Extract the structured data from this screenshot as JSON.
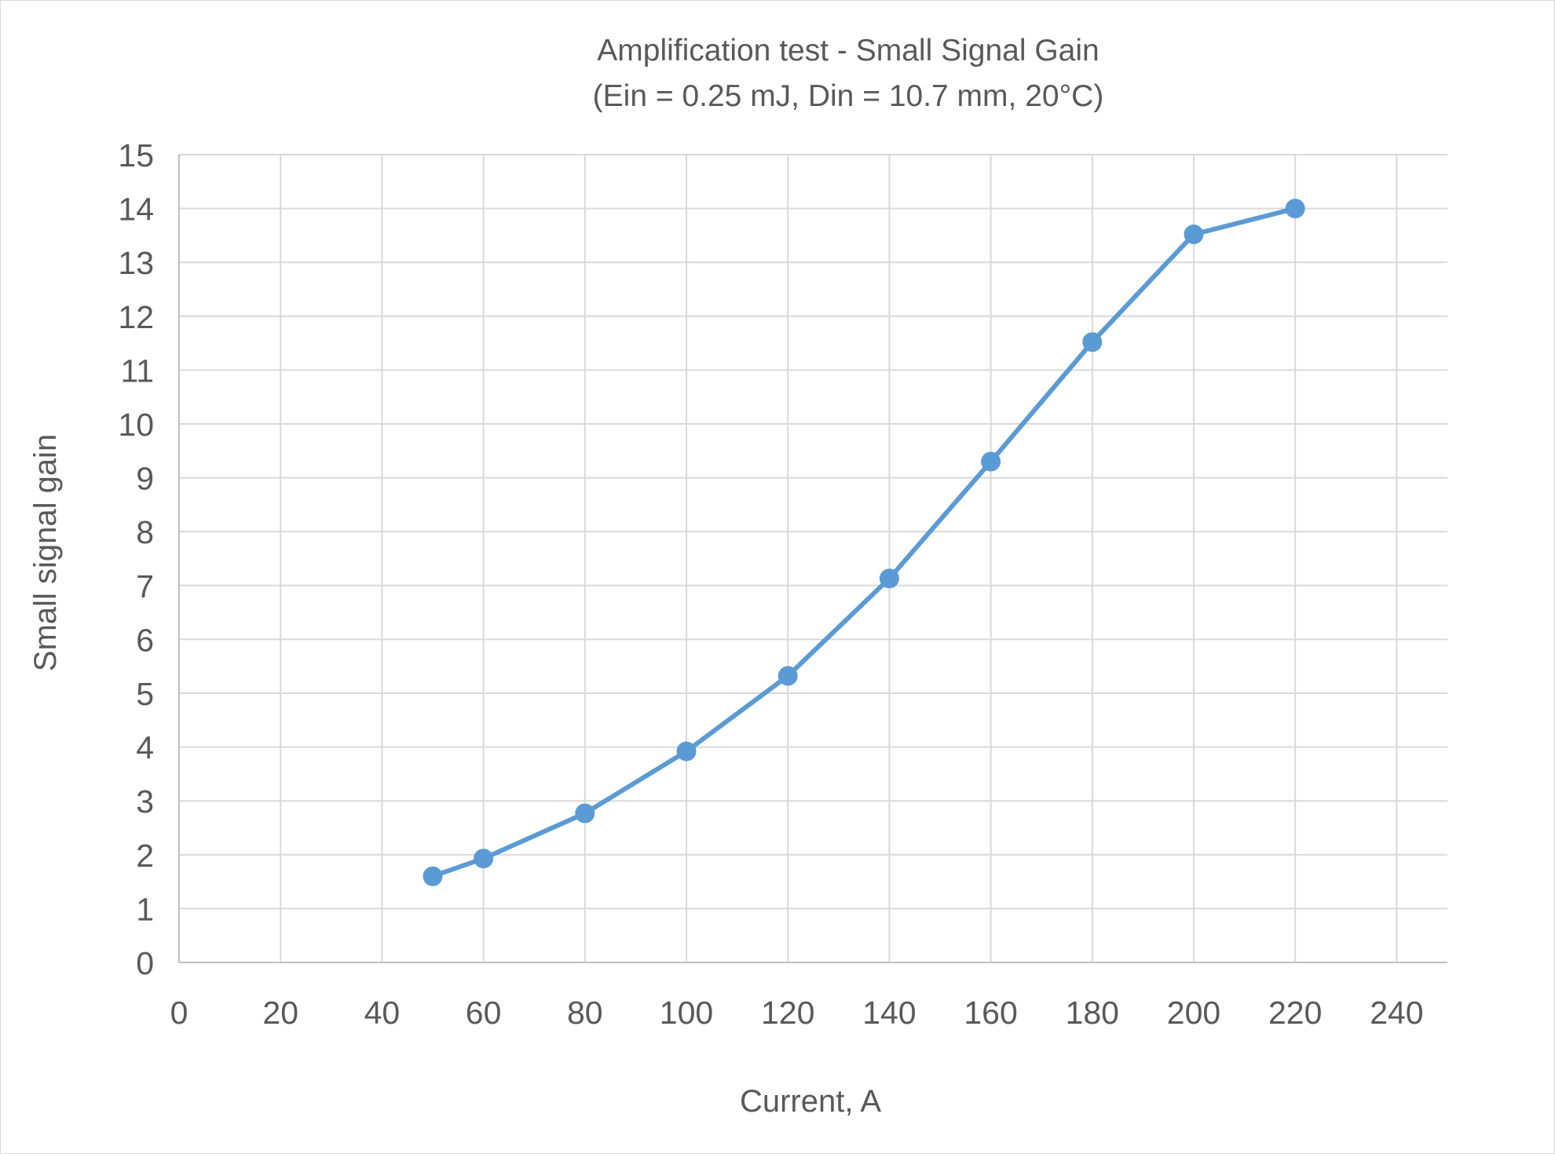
{
  "chart_data": {
    "type": "line",
    "title": "Amplification test - Small Signal Gain",
    "subtitle": "(Ein = 0.25 mJ, Din = 10.7 mm, 20°C)",
    "xlabel": "Current, A",
    "ylabel": "Small signal gain",
    "xlim": [
      0,
      250
    ],
    "ylim": [
      0,
      15
    ],
    "x_ticks": [
      "0",
      "20",
      "40",
      "60",
      "80",
      "100",
      "120",
      "140",
      "160",
      "180",
      "200",
      "220",
      "240"
    ],
    "y_ticks": [
      "0",
      "1",
      "2",
      "3",
      "4",
      "5",
      "6",
      "7",
      "8",
      "9",
      "10",
      "11",
      "12",
      "13",
      "14",
      "15"
    ],
    "grid": true,
    "legend": "none",
    "series": [
      {
        "color": "#5b9bd5",
        "marker": "circle",
        "x": [
          50,
          60,
          80,
          100,
          120,
          140,
          160,
          180,
          200,
          220
        ],
        "y": [
          1.6,
          1.93,
          2.77,
          3.92,
          5.32,
          7.13,
          9.3,
          11.52,
          13.52,
          14.0
        ]
      }
    ]
  }
}
